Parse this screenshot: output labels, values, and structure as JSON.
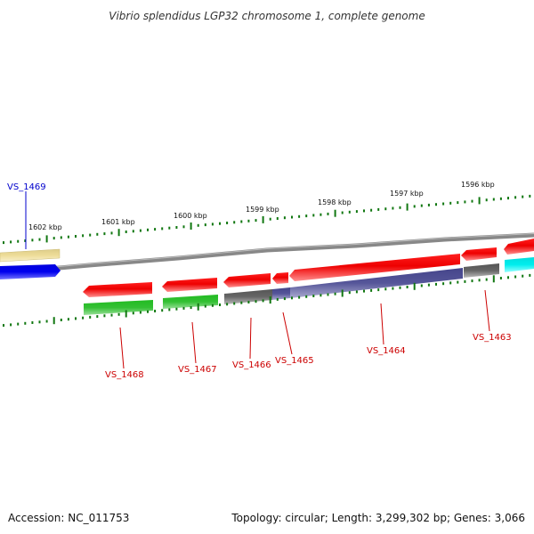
{
  "title": "Vibrio splendidus LGP32 chromosome 1, complete genome",
  "footer": {
    "accession": "Accession: NC_011753",
    "summary": "Topology: circular; Length: 3,299,302 bp; Genes: 3,066"
  },
  "colors": {
    "backbone": "#777777",
    "tick": "#117711",
    "ruler_label": "#111111",
    "forward_label": "#0000cc",
    "reverse_label": "#cc0000"
  },
  "ruler": [
    "1602 kbp",
    "1601 kbp",
    "1600 kbp",
    "1599 kbp",
    "1598 kbp",
    "1597 kbp",
    "1596 kbp"
  ],
  "gene_labels": [
    "VS_1469",
    "VS_1468",
    "VS_1467",
    "VS_1466",
    "VS_1465",
    "VS_1464",
    "VS_1463"
  ]
}
